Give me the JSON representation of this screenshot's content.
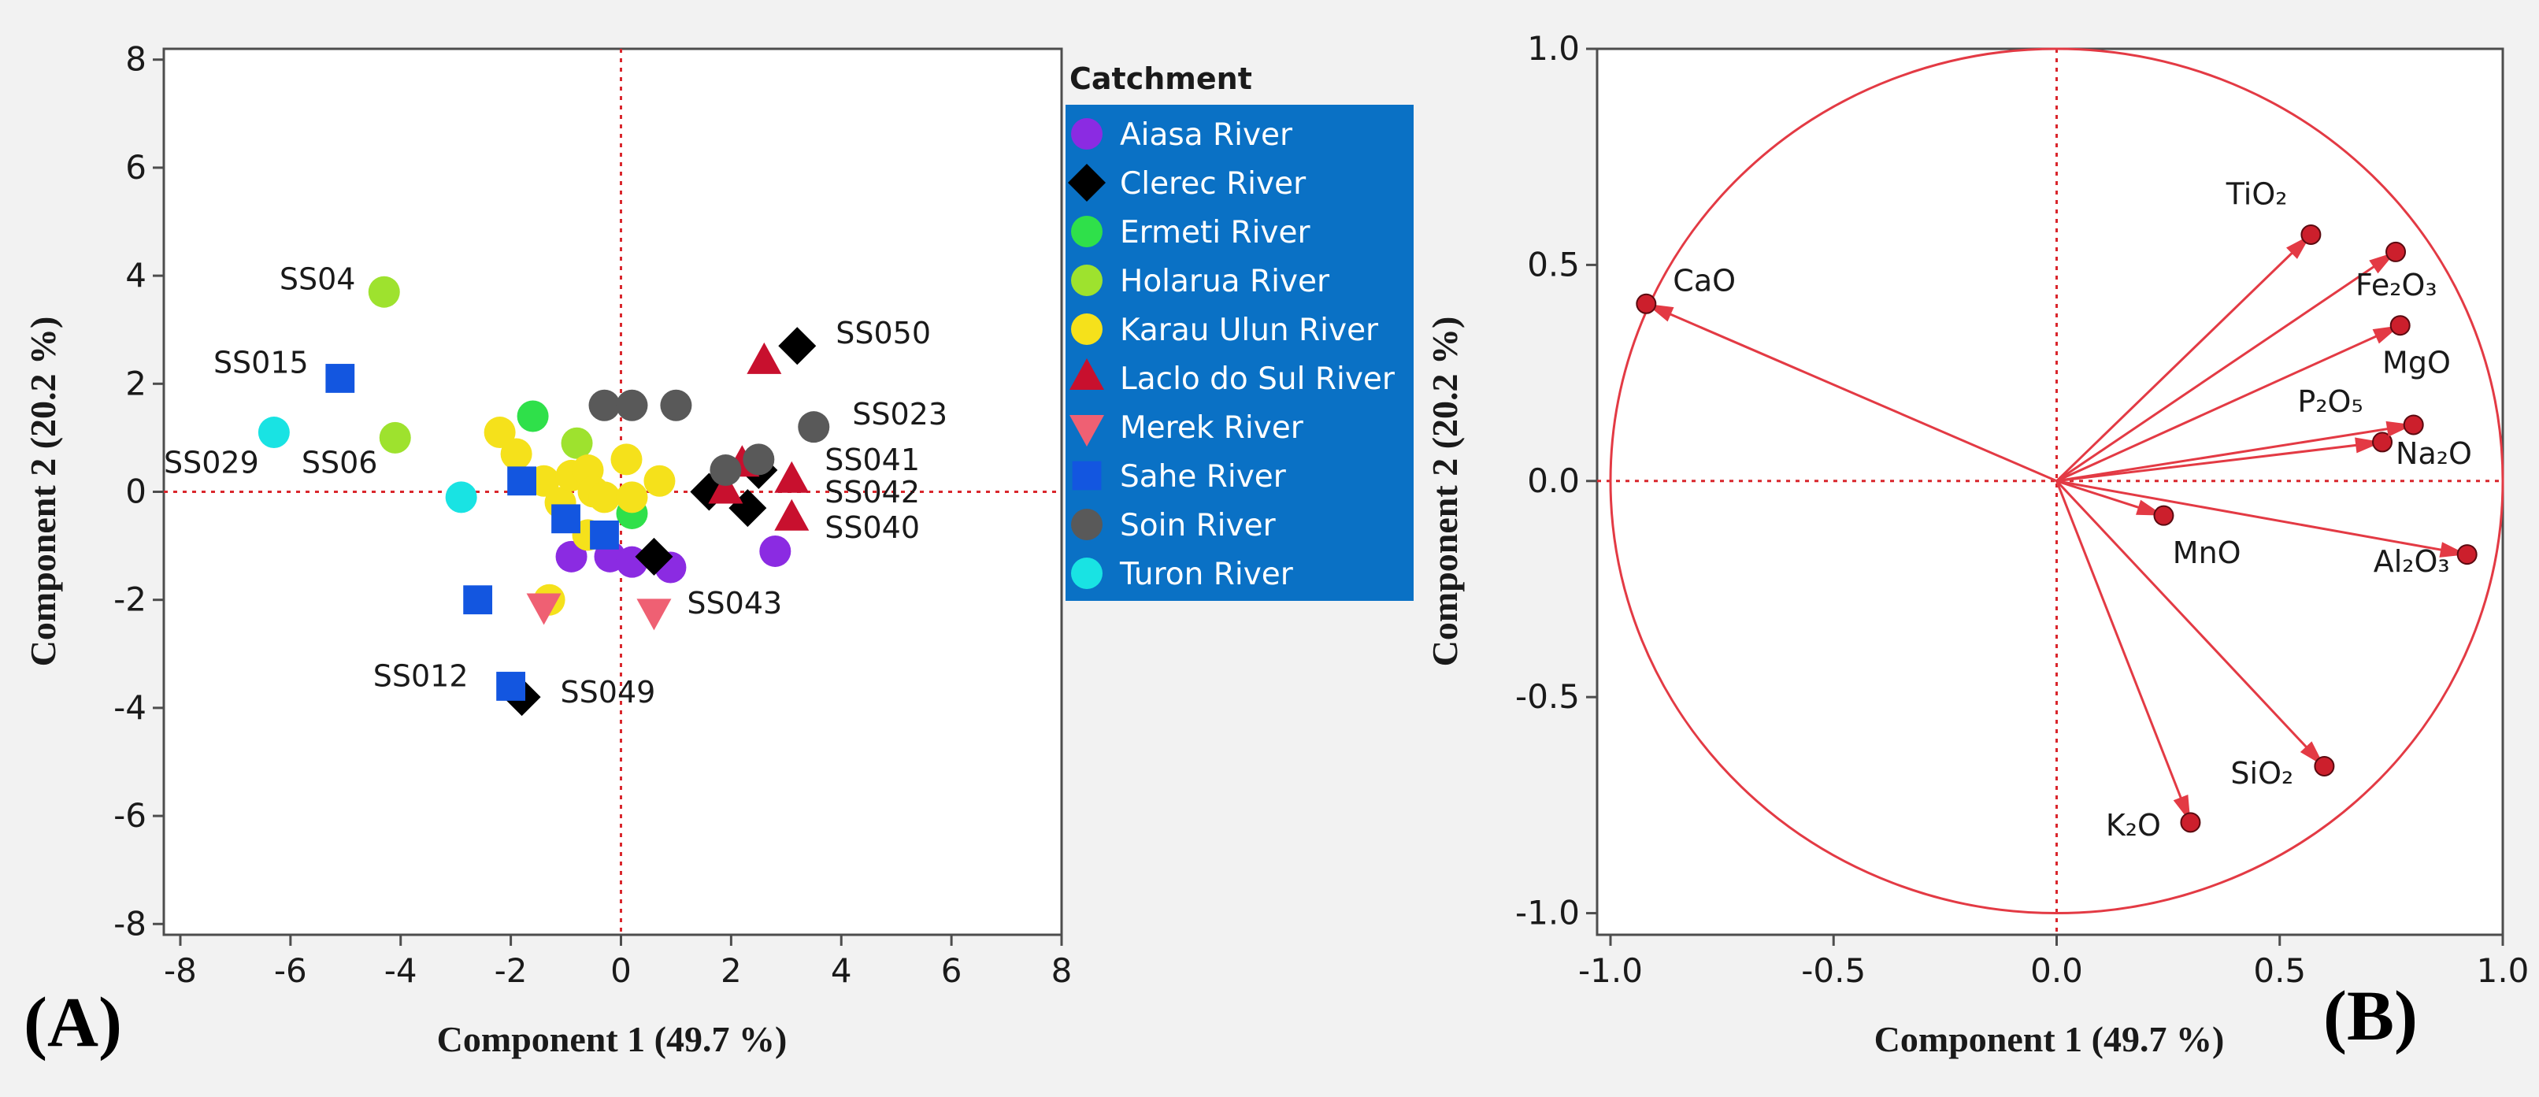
{
  "panel_labels": {
    "a": "(A)",
    "b": "(B)"
  },
  "colors": {
    "background": "#f2f2f2",
    "plot_bg": "#ffffff",
    "axis": "#4d4d4d",
    "ref_line": "#d9262c",
    "legend_bg": "#0a71c5",
    "legend_text": "#ffffff",
    "loading": "#e33a44"
  },
  "chart_data": [
    {
      "id": "scores",
      "type": "scatter",
      "title": "",
      "xlabel": "Component 1  (49.7 %)",
      "ylabel": "Component 2  (20.2 %)",
      "xlim": [
        -8.3,
        8
      ],
      "ylim": [
        -8.2,
        8.2
      ],
      "xticks": [
        -8,
        -6,
        -4,
        -2,
        0,
        2,
        4,
        6,
        8
      ],
      "yticks": [
        -8,
        -6,
        -4,
        -2,
        0,
        2,
        4,
        6,
        8
      ],
      "xtick_labels": [
        "-8",
        "-6",
        "-4",
        "-2",
        "0",
        "2",
        "4",
        "6",
        "8"
      ],
      "ytick_labels": [
        "-8",
        "-6",
        "-4",
        "-2",
        "0",
        "2",
        "4",
        "6",
        "8"
      ],
      "ref_lines": {
        "x": 0,
        "y": 0
      },
      "legend": {
        "title": "Catchment",
        "position": "right"
      },
      "series": [
        {
          "name": "Aiasa River",
          "marker": "circle",
          "color": "#8b2be2",
          "points": [
            [
              -0.9,
              -1.2
            ],
            [
              -0.2,
              -1.2
            ],
            [
              0.2,
              -1.3
            ],
            [
              0.9,
              -1.4
            ],
            [
              2.8,
              -1.1
            ]
          ]
        },
        {
          "name": "Clerec River",
          "marker": "diamond",
          "color": "#000000",
          "points": [
            [
              3.2,
              2.7
            ],
            [
              2.5,
              0.4
            ],
            [
              1.6,
              0
            ],
            [
              2.3,
              -0.3
            ],
            [
              0.6,
              -1.2
            ],
            [
              -1.8,
              -3.8
            ]
          ]
        },
        {
          "name": "Ermeti River",
          "marker": "circle",
          "color": "#2fe04a",
          "points": [
            [
              -1.6,
              1.4
            ],
            [
              0.2,
              -0.4
            ]
          ]
        },
        {
          "name": "Holarua River",
          "marker": "circle",
          "color": "#9ee22e",
          "points": [
            [
              -4.3,
              3.7
            ],
            [
              -4.1,
              1.0
            ],
            [
              -0.8,
              0.9
            ]
          ]
        },
        {
          "name": "Karau Ulun River",
          "marker": "circle",
          "color": "#f5e11b",
          "points": [
            [
              -2.2,
              1.1
            ],
            [
              -1.9,
              0.7
            ],
            [
              -1.4,
              0.2
            ],
            [
              -1.1,
              -0.2
            ],
            [
              -0.9,
              0.3
            ],
            [
              -0.6,
              0.4
            ],
            [
              -0.5,
              0
            ],
            [
              -0.3,
              -0.1
            ],
            [
              0.1,
              0.6
            ],
            [
              0.2,
              -0.1
            ],
            [
              0.7,
              0.2
            ],
            [
              -0.6,
              -0.8
            ],
            [
              -1.3,
              -2.0
            ]
          ]
        },
        {
          "name": "Laclo do Sul River",
          "marker": "triangle-up",
          "color": "#c8102e",
          "points": [
            [
              2.6,
              2.4
            ],
            [
              2.2,
              0.5
            ],
            [
              1.9,
              0
            ],
            [
              3.1,
              0.2
            ],
            [
              3.1,
              -0.5
            ]
          ]
        },
        {
          "name": "Merek River",
          "marker": "triangle-down",
          "color": "#ef6073",
          "points": [
            [
              -1.4,
              -2.1
            ],
            [
              0.6,
              -2.2
            ]
          ]
        },
        {
          "name": "Sahe River",
          "marker": "square",
          "color": "#1356e0",
          "points": [
            [
              -5.1,
              2.1
            ],
            [
              -1.8,
              0.2
            ],
            [
              -1.0,
              -0.5
            ],
            [
              -0.3,
              -0.8
            ],
            [
              -2.6,
              -2.0
            ],
            [
              -2.0,
              -3.6
            ]
          ]
        },
        {
          "name": "Soin River",
          "marker": "circle",
          "color": "#595959",
          "points": [
            [
              -0.3,
              1.6
            ],
            [
              0.2,
              1.6
            ],
            [
              1.0,
              1.6
            ],
            [
              1.9,
              0.4
            ],
            [
              2.5,
              0.6
            ],
            [
              3.5,
              1.2
            ]
          ]
        },
        {
          "name": "Turon River",
          "marker": "circle",
          "color": "#19e3e3",
          "points": [
            [
              -6.3,
              1.1
            ],
            [
              -2.9,
              -0.1
            ]
          ]
        }
      ],
      "annotations": [
        {
          "text": "SS04",
          "x": -6.2,
          "y": 3.75
        },
        {
          "text": "SS015",
          "x": -7.4,
          "y": 2.2
        },
        {
          "text": "SS029",
          "x": -8.3,
          "y": 0.35
        },
        {
          "text": "SS06",
          "x": -5.8,
          "y": 0.35
        },
        {
          "text": "SS050",
          "x": 3.9,
          "y": 2.75
        },
        {
          "text": "SS023",
          "x": 4.2,
          "y": 1.25
        },
        {
          "text": "SS041",
          "x": 3.7,
          "y": 0.4
        },
        {
          "text": "SS042",
          "x": 3.7,
          "y": -0.2
        },
        {
          "text": "SS040",
          "x": 3.7,
          "y": -0.85
        },
        {
          "text": "SS043",
          "x": 1.2,
          "y": -2.25
        },
        {
          "text": "SS012",
          "x": -4.5,
          "y": -3.6
        },
        {
          "text": "SS049",
          "x": -1.1,
          "y": -3.9
        }
      ]
    },
    {
      "id": "loadings",
      "type": "scatter",
      "title": "",
      "xlabel": "Component 1  (49.7 %)",
      "ylabel": "Component 2  (20.2 %)",
      "xlim": [
        -1.03,
        1.0
      ],
      "ylim": [
        -1.05,
        1.0
      ],
      "xticks": [
        -1.0,
        -0.5,
        0.0,
        0.5,
        1.0
      ],
      "yticks": [
        -1.0,
        -0.5,
        0.0,
        0.5,
        1.0
      ],
      "xtick_labels": [
        "-1.0",
        "-0.5",
        "0.0",
        "0.5",
        "1.0"
      ],
      "ytick_labels": [
        "-1.0",
        "-0.5",
        "0.0",
        "0.5",
        "1.0"
      ],
      "ref_lines": {
        "x": 0,
        "y": 0
      },
      "unit_circle": true,
      "vectors": [
        {
          "label": "CaO",
          "x": -0.92,
          "y": 0.41,
          "label_x": -0.86,
          "label_y": 0.44
        },
        {
          "label": "TiO₂",
          "x": 0.57,
          "y": 0.57,
          "label_x": 0.38,
          "label_y": 0.64
        },
        {
          "label": "Fe₂O₃",
          "x": 0.76,
          "y": 0.53,
          "label_x": 0.67,
          "label_y": 0.43
        },
        {
          "label": "MgO",
          "x": 0.77,
          "y": 0.36,
          "label_x": 0.73,
          "label_y": 0.25
        },
        {
          "label": "P₂O₅",
          "x": 0.73,
          "y": 0.09,
          "label_x": 0.54,
          "label_y": 0.16
        },
        {
          "label": "Na₂O",
          "x": 0.8,
          "y": 0.13,
          "label_x": 0.76,
          "label_y": 0.04
        },
        {
          "label": "MnO",
          "x": 0.24,
          "y": -0.08,
          "label_x": 0.26,
          "label_y": -0.19
        },
        {
          "label": "Al₂O₃",
          "x": 0.92,
          "y": -0.17,
          "label_x": 0.71,
          "label_y": -0.21
        },
        {
          "label": "SiO₂",
          "x": 0.6,
          "y": -0.66,
          "label_x": 0.39,
          "label_y": -0.7
        },
        {
          "label": "K₂O",
          "x": 0.3,
          "y": -0.79,
          "label_x": 0.11,
          "label_y": -0.82
        }
      ]
    }
  ]
}
